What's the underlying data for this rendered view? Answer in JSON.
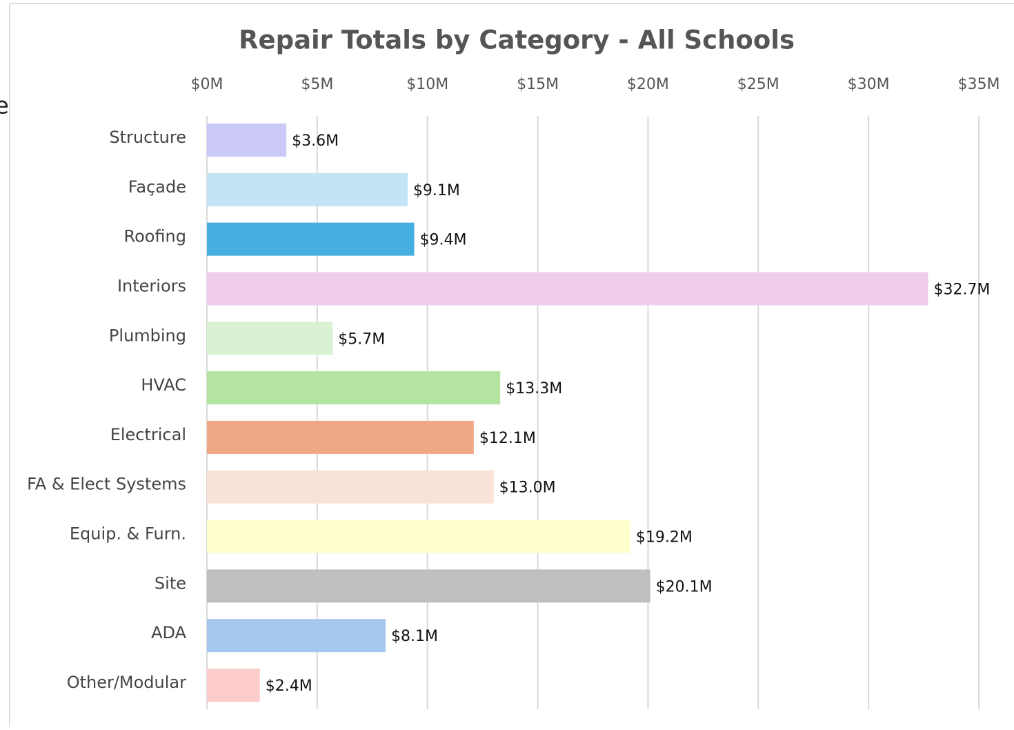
{
  "cropped_text": "e",
  "chart_data": {
    "type": "bar",
    "orientation": "horizontal",
    "title": "Repair Totals by Category - All Schools",
    "categories": [
      "Structure",
      "Façade",
      "Roofing",
      "Interiors",
      "Plumbing",
      "HVAC",
      "Electrical",
      "FA & Elect Systems",
      "Equip. & Furn.",
      "Site",
      "ADA",
      "Other/Modular"
    ],
    "values": [
      3.6,
      9.1,
      9.4,
      32.7,
      5.7,
      13.3,
      12.1,
      13.0,
      19.2,
      20.1,
      8.1,
      2.4
    ],
    "value_labels": [
      "$3.6M",
      "$9.1M",
      "$9.4M",
      "$32.7M",
      "$5.7M",
      "$13.3M",
      "$12.1M",
      "$13.0M",
      "$19.2M",
      "$20.1M",
      "$8.1M",
      "$2.4M"
    ],
    "colors": [
      "#cbc9f7",
      "#c3e4f4",
      "#45b0e0",
      "#f0cdec",
      "#d9f2d2",
      "#b4e4a1",
      "#eea886",
      "#f9e2d8",
      "#fefece",
      "#bfbfbf",
      "#a6c8ec",
      "#fdcdcd"
    ],
    "xlim": [
      0,
      35
    ],
    "xticks": [
      {
        "value": 0,
        "label": "$0M"
      },
      {
        "value": 5,
        "label": "$5M"
      },
      {
        "value": 10,
        "label": "$10M"
      },
      {
        "value": 15,
        "label": "$15M"
      },
      {
        "value": 20,
        "label": "$20M"
      },
      {
        "value": 25,
        "label": "$25M"
      },
      {
        "value": 30,
        "label": "$30M"
      },
      {
        "value": 35,
        "label": "$35M"
      }
    ],
    "grid": true
  }
}
